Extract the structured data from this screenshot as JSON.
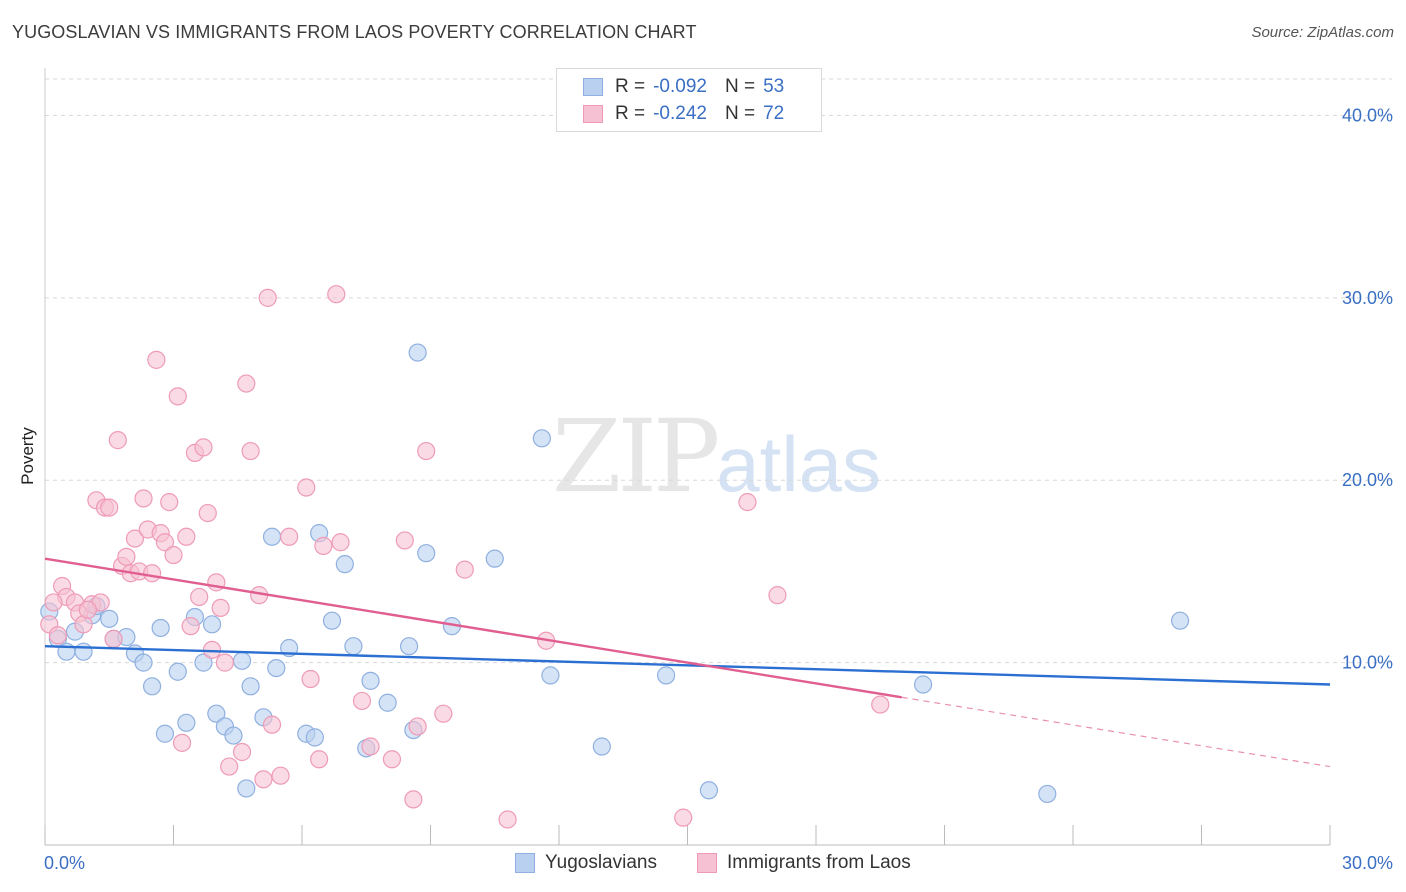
{
  "title": "YUGOSLAVIAN VS IMMIGRANTS FROM LAOS POVERTY CORRELATION CHART",
  "source": "Source: ZipAtlas.com",
  "watermark": {
    "zip": "ZIP",
    "atlas": "atlas"
  },
  "legend_top": [
    {
      "r_label": "R =",
      "r_value": "-0.092",
      "n_label": "N =",
      "n_value": "53"
    },
    {
      "r_label": "R =",
      "r_value": "-0.242",
      "n_label": "N =",
      "n_value": "72"
    }
  ],
  "legend_bottom": [
    "Yugoslavians",
    "Immigrants from Laos"
  ],
  "colors": {
    "blue_fill": "#b9d0f0",
    "blue_stroke": "#8fb0e0",
    "blue_line": "#2a6fd1",
    "pink_fill": "#f6c1d2",
    "pink_stroke": "#ee9bb7",
    "pink_line": "#e05f90",
    "tick_text": "#3a6fc4",
    "grid": "#d8d8d8"
  },
  "chart_data": {
    "type": "scatter",
    "title": "YUGOSLAVIAN VS IMMIGRANTS FROM LAOS POVERTY CORRELATION CHART",
    "xlabel": "",
    "ylabel": "Poverty",
    "xlim": [
      0,
      30
    ],
    "ylim": [
      0,
      42
    ],
    "x_tick_labels": [
      "0.0%",
      "30.0%"
    ],
    "y_ticks": [
      10,
      20,
      30,
      40
    ],
    "y_tick_labels": [
      "10.0%",
      "20.0%",
      "30.0%",
      "40.0%"
    ],
    "grid": true,
    "legend_position": "top-center",
    "series": [
      {
        "name": "Yugoslavians",
        "r": -0.092,
        "n": 53,
        "trend": {
          "x0": 0,
          "y0": 10.9,
          "x1": 30,
          "y1": 8.8
        },
        "points": [
          [
            0.1,
            12.8
          ],
          [
            0.3,
            11.3
          ],
          [
            0.5,
            10.6
          ],
          [
            0.7,
            11.7
          ],
          [
            0.9,
            10.6
          ],
          [
            1.1,
            12.6
          ],
          [
            1.2,
            13.1
          ],
          [
            1.5,
            12.4
          ],
          [
            1.6,
            11.3
          ],
          [
            1.9,
            11.4
          ],
          [
            2.1,
            10.5
          ],
          [
            2.3,
            10.0
          ],
          [
            2.5,
            8.7
          ],
          [
            2.7,
            11.9
          ],
          [
            2.8,
            6.1
          ],
          [
            3.1,
            9.5
          ],
          [
            3.3,
            6.7
          ],
          [
            3.5,
            12.5
          ],
          [
            3.7,
            10.0
          ],
          [
            3.9,
            12.1
          ],
          [
            4.0,
            7.2
          ],
          [
            4.2,
            6.5
          ],
          [
            4.4,
            6.0
          ],
          [
            4.6,
            10.1
          ],
          [
            4.7,
            3.1
          ],
          [
            4.8,
            8.7
          ],
          [
            5.1,
            7.0
          ],
          [
            5.4,
            9.7
          ],
          [
            5.7,
            10.8
          ],
          [
            6.1,
            6.1
          ],
          [
            6.3,
            5.9
          ],
          [
            6.4,
            17.1
          ],
          [
            6.7,
            12.3
          ],
          [
            7.0,
            15.4
          ],
          [
            7.2,
            10.9
          ],
          [
            7.5,
            5.3
          ],
          [
            7.6,
            9.0
          ],
          [
            8.0,
            7.8
          ],
          [
            8.5,
            10.9
          ],
          [
            8.6,
            6.3
          ],
          [
            8.7,
            27.0
          ],
          [
            8.9,
            16.0
          ],
          [
            9.5,
            12.0
          ],
          [
            10.5,
            15.7
          ],
          [
            11.6,
            22.3
          ],
          [
            11.8,
            9.3
          ],
          [
            13.0,
            5.4
          ],
          [
            14.5,
            9.3
          ],
          [
            15.5,
            3.0
          ],
          [
            20.5,
            8.8
          ],
          [
            23.4,
            2.8
          ],
          [
            26.5,
            12.3
          ],
          [
            5.3,
            16.9
          ]
        ]
      },
      {
        "name": "Immigrants from Laos",
        "r": -0.242,
        "n": 72,
        "trend": {
          "x0": 0,
          "y0": 15.7,
          "x1": 20.0,
          "y1": 8.1
        },
        "trend_dashed": {
          "x0": 20.0,
          "y0": 8.1,
          "x1": 30,
          "y1": 4.3
        },
        "points": [
          [
            0.1,
            12.1
          ],
          [
            0.3,
            11.5
          ],
          [
            0.4,
            14.2
          ],
          [
            0.5,
            13.6
          ],
          [
            0.7,
            13.3
          ],
          [
            0.8,
            12.7
          ],
          [
            0.9,
            12.1
          ],
          [
            1.1,
            13.2
          ],
          [
            1.2,
            18.9
          ],
          [
            1.3,
            13.3
          ],
          [
            1.4,
            18.5
          ],
          [
            1.5,
            18.5
          ],
          [
            1.6,
            11.3
          ],
          [
            1.7,
            22.2
          ],
          [
            1.8,
            15.3
          ],
          [
            1.9,
            15.8
          ],
          [
            2.0,
            14.9
          ],
          [
            2.1,
            16.8
          ],
          [
            2.2,
            15.0
          ],
          [
            2.3,
            19.0
          ],
          [
            2.4,
            17.3
          ],
          [
            2.5,
            14.9
          ],
          [
            2.6,
            26.6
          ],
          [
            2.7,
            17.1
          ],
          [
            2.8,
            16.6
          ],
          [
            2.9,
            18.8
          ],
          [
            3.0,
            15.9
          ],
          [
            3.1,
            24.6
          ],
          [
            3.2,
            5.6
          ],
          [
            3.3,
            16.9
          ],
          [
            3.4,
            12.0
          ],
          [
            3.5,
            21.5
          ],
          [
            3.6,
            13.6
          ],
          [
            3.7,
            21.8
          ],
          [
            3.8,
            18.2
          ],
          [
            3.9,
            10.7
          ],
          [
            4.0,
            14.4
          ],
          [
            4.1,
            13.0
          ],
          [
            4.2,
            10.0
          ],
          [
            4.3,
            4.3
          ],
          [
            4.6,
            5.1
          ],
          [
            4.7,
            25.3
          ],
          [
            4.8,
            21.6
          ],
          [
            5.0,
            13.7
          ],
          [
            5.1,
            3.6
          ],
          [
            5.2,
            30.0
          ],
          [
            5.3,
            6.6
          ],
          [
            5.5,
            3.8
          ],
          [
            5.7,
            16.9
          ],
          [
            6.1,
            19.6
          ],
          [
            6.2,
            9.1
          ],
          [
            6.4,
            4.7
          ],
          [
            6.8,
            30.2
          ],
          [
            6.9,
            16.6
          ],
          [
            7.4,
            7.9
          ],
          [
            7.6,
            5.4
          ],
          [
            8.1,
            4.7
          ],
          [
            8.4,
            16.7
          ],
          [
            8.6,
            2.5
          ],
          [
            8.7,
            6.5
          ],
          [
            8.9,
            21.6
          ],
          [
            9.3,
            7.2
          ],
          [
            9.8,
            15.1
          ],
          [
            10.8,
            1.4
          ],
          [
            11.7,
            11.2
          ],
          [
            14.9,
            1.5
          ],
          [
            16.4,
            18.8
          ],
          [
            17.1,
            13.7
          ],
          [
            19.5,
            7.7
          ],
          [
            0.2,
            13.3
          ],
          [
            1.0,
            12.9
          ],
          [
            6.5,
            16.4
          ]
        ]
      }
    ]
  }
}
